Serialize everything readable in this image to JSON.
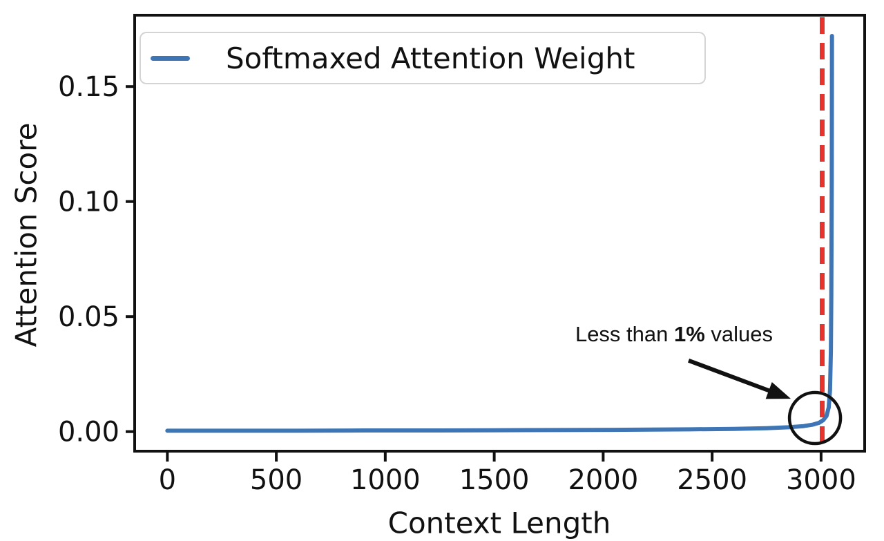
{
  "axes": {
    "x_label": "Context Length",
    "y_label": "Attention Score"
  },
  "legend": {
    "label": "Softmaxed Attention Weight",
    "line_color": "#3e76b5"
  },
  "annotation": {
    "prefix": "Less than ",
    "bold": "1%",
    "suffix": " values"
  },
  "colors": {
    "series": "#3e76b5",
    "vline": "#e5332e",
    "ink": "#111111",
    "legend_border": "#d4d4d4"
  },
  "chart_data": {
    "type": "line",
    "title": "",
    "xlabel": "Context Length",
    "ylabel": "Attention Score",
    "xlim": [
      -150,
      3200
    ],
    "ylim": [
      -0.0085,
      0.181
    ],
    "grid": false,
    "legend_position": "upper left",
    "x_ticks": [
      0,
      500,
      1000,
      1500,
      2000,
      2500,
      3000
    ],
    "x_tick_labels": [
      "0",
      "500",
      "1000",
      "1500",
      "2000",
      "2500",
      "3000"
    ],
    "y_ticks": [
      0.0,
      0.05,
      0.1,
      0.15
    ],
    "y_tick_labels": [
      "0.00",
      "0.05",
      "0.10",
      "0.15"
    ],
    "series": [
      {
        "name": "Softmaxed Attention Weight",
        "color": "#3e76b5",
        "x": [
          0,
          300,
          600,
          900,
          1200,
          1500,
          1800,
          2100,
          2400,
          2600,
          2750,
          2850,
          2920,
          2960,
          2990,
          3010,
          3025,
          3035,
          3041,
          3045,
          3047,
          3049,
          3050
        ],
        "y": [
          0.0004,
          0.0004,
          0.0004,
          0.0005,
          0.0005,
          0.0006,
          0.0007,
          0.0008,
          0.001,
          0.0012,
          0.0015,
          0.0019,
          0.0024,
          0.003,
          0.0038,
          0.005,
          0.0068,
          0.0105,
          0.018,
          0.035,
          0.06,
          0.11,
          0.172
        ]
      }
    ],
    "vline": {
      "x": 3005,
      "color": "#e5332e",
      "style": "dashed"
    },
    "annotations": {
      "text": "Less than 1% values",
      "text_xy": [
        2322,
        0.0422
      ],
      "arrow_from": [
        2392,
        0.0309
      ],
      "arrow_to": [
        2861,
        0.0143
      ],
      "circle_center": [
        2972,
        0.0059
      ],
      "circle_radius_px": 37
    }
  }
}
